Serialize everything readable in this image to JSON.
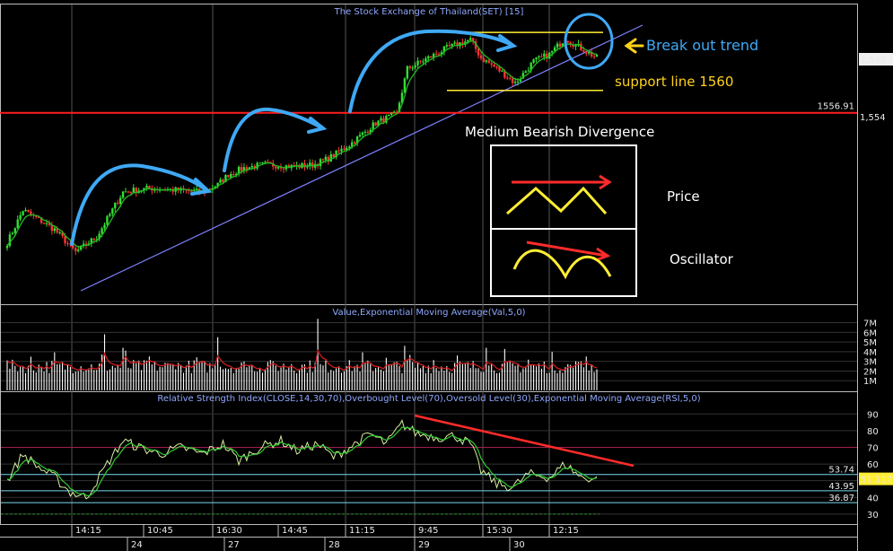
{
  "colors": {
    "background": "#000000",
    "candle_up": "#33dd33",
    "candle_down": "#ff3333",
    "ema_price": "#22bb22",
    "trendline": "#8080ff",
    "resistance": "#ff1e1e",
    "support": "#ffee33",
    "volume_bar": "#ffffff",
    "volume_ema": "#d01c1c",
    "rsi": "#d6f0a0",
    "rsi_ema": "#33cc33",
    "annotation_blue": "#3fa9f5",
    "annotation_yellow": "#ffd21a",
    "annotation_red": "#ff2b2b"
  },
  "chart_data": [
    {
      "type": "candlestick",
      "title": "The Stock Exchange of Thailand(SET) [15]",
      "yticks": [
        "1,565",
        "1,554"
      ],
      "price_marker": "1556.91",
      "price_current": "1,565",
      "x_time_labels": [
        "14:15",
        "10:45",
        "16:30",
        "14:45",
        "11:15",
        "9:45",
        "15:30",
        "12:15"
      ],
      "x_day_labels": [
        "24",
        "27",
        "28",
        "29",
        "30"
      ],
      "ylim": [
        1531,
        1570
      ],
      "n_bars": 225,
      "key_points": [
        {
          "i": 0,
          "p": 1539.0
        },
        {
          "i": 6,
          "p": 1543.5
        },
        {
          "i": 12,
          "p": 1542.2
        },
        {
          "i": 18,
          "p": 1540.8
        },
        {
          "i": 26,
          "p": 1537.7
        },
        {
          "i": 34,
          "p": 1539.8
        },
        {
          "i": 44,
          "p": 1546.0
        },
        {
          "i": 54,
          "p": 1546.5
        },
        {
          "i": 66,
          "p": 1546.2
        },
        {
          "i": 74,
          "p": 1546.0
        },
        {
          "i": 80,
          "p": 1547.0
        },
        {
          "i": 84,
          "p": 1548.4
        },
        {
          "i": 90,
          "p": 1549.3
        },
        {
          "i": 98,
          "p": 1549.8
        },
        {
          "i": 108,
          "p": 1549.5
        },
        {
          "i": 116,
          "p": 1549.7
        },
        {
          "i": 122,
          "p": 1550.6
        },
        {
          "i": 130,
          "p": 1552.5
        },
        {
          "i": 140,
          "p": 1555.5
        },
        {
          "i": 148,
          "p": 1556.8
        },
        {
          "i": 152,
          "p": 1563.0
        },
        {
          "i": 160,
          "p": 1564.5
        },
        {
          "i": 168,
          "p": 1566.0
        },
        {
          "i": 176,
          "p": 1567.0
        },
        {
          "i": 180,
          "p": 1564.5
        },
        {
          "i": 184,
          "p": 1563.5
        },
        {
          "i": 188,
          "p": 1562.5
        },
        {
          "i": 193,
          "p": 1561.0
        },
        {
          "i": 200,
          "p": 1564.0
        },
        {
          "i": 206,
          "p": 1565.0
        },
        {
          "i": 212,
          "p": 1567.2
        },
        {
          "i": 218,
          "p": 1565.8
        },
        {
          "i": 224,
          "p": 1564.5
        }
      ],
      "resistance_level": 1556.91,
      "trend_box_top": 1568.0,
      "support_level": 1560.0
    },
    {
      "type": "bar",
      "title": "Value,Exponential Moving Average(Val,5,0)",
      "yticks": [
        "7M",
        "6M",
        "5M",
        "4M",
        "3M",
        "2M",
        "1M"
      ],
      "ylim": [
        0,
        7.7
      ],
      "base_level": 2.4,
      "spikes": [
        {
          "i": 37,
          "v": 5.8
        },
        {
          "i": 44,
          "v": 4.4
        },
        {
          "i": 80,
          "v": 5.5
        },
        {
          "i": 118,
          "v": 7.4
        },
        {
          "i": 151,
          "v": 4.6
        },
        {
          "i": 182,
          "v": 4.4
        },
        {
          "i": 220,
          "v": 3.5
        }
      ]
    },
    {
      "type": "line",
      "title": "Relative Strength Index(CLOSE,14,30,70),Overbought Level(70),Oversold Level(30),Exponential Moving Average(RSI,5,0)",
      "yticks": [
        "90",
        "80",
        "70",
        "60",
        "50",
        "40",
        "30"
      ],
      "ylim": [
        24,
        95
      ],
      "overbought": 70,
      "oversold": 30,
      "levels": [
        {
          "value": 53.74,
          "label": "53.74"
        },
        {
          "value": 43.95,
          "label": "43.95"
        },
        {
          "value": 36.87,
          "label": "36.87"
        }
      ],
      "rsi_current": "51.117",
      "key_points": [
        {
          "i": 0,
          "v": 50
        },
        {
          "i": 6,
          "v": 66
        },
        {
          "i": 12,
          "v": 58
        },
        {
          "i": 18,
          "v": 52
        },
        {
          "i": 24,
          "v": 43
        },
        {
          "i": 30,
          "v": 40
        },
        {
          "i": 38,
          "v": 60
        },
        {
          "i": 44,
          "v": 74
        },
        {
          "i": 50,
          "v": 70
        },
        {
          "i": 58,
          "v": 66
        },
        {
          "i": 66,
          "v": 70
        },
        {
          "i": 74,
          "v": 66
        },
        {
          "i": 82,
          "v": 72
        },
        {
          "i": 88,
          "v": 62
        },
        {
          "i": 96,
          "v": 70
        },
        {
          "i": 104,
          "v": 74
        },
        {
          "i": 110,
          "v": 68
        },
        {
          "i": 118,
          "v": 72
        },
        {
          "i": 124,
          "v": 64
        },
        {
          "i": 130,
          "v": 70
        },
        {
          "i": 138,
          "v": 78
        },
        {
          "i": 144,
          "v": 72
        },
        {
          "i": 150,
          "v": 84
        },
        {
          "i": 156,
          "v": 78
        },
        {
          "i": 164,
          "v": 76
        },
        {
          "i": 170,
          "v": 77
        },
        {
          "i": 176,
          "v": 72
        },
        {
          "i": 180,
          "v": 56
        },
        {
          "i": 186,
          "v": 48
        },
        {
          "i": 192,
          "v": 46
        },
        {
          "i": 198,
          "v": 54
        },
        {
          "i": 206,
          "v": 52
        },
        {
          "i": 212,
          "v": 60
        },
        {
          "i": 218,
          "v": 52
        },
        {
          "i": 224,
          "v": 51
        }
      ]
    }
  ],
  "annotations": {
    "break_out_label": "Break out trend",
    "support_label": "support line 1560",
    "divergence_title": "Medium Bearish Divergence",
    "price_label": "Price",
    "oscillator_label": "Oscillator"
  }
}
